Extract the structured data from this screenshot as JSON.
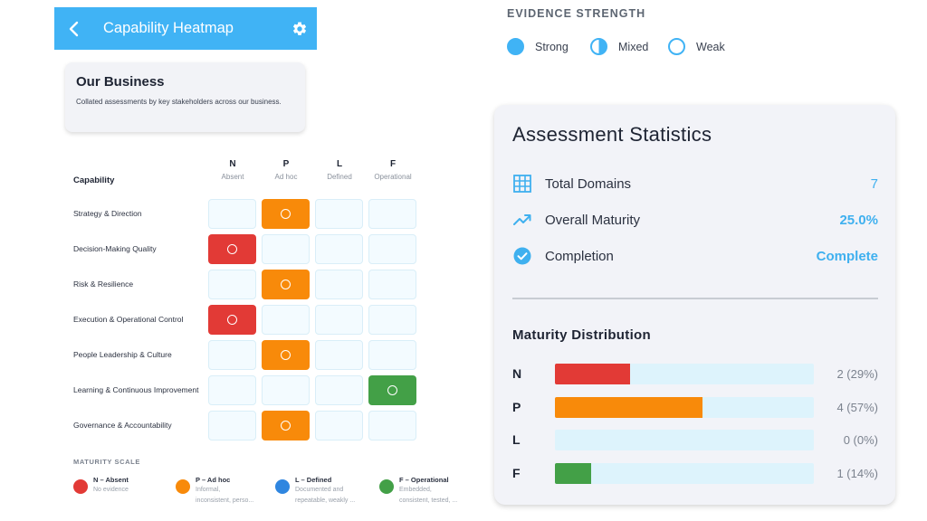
{
  "appbar": {
    "title": "Capability Heatmap",
    "back_icon": "back-arrow-icon",
    "settings_icon": "gear-icon"
  },
  "business": {
    "title": "Our Business",
    "description": "Collated assessments by key stakeholders across our business."
  },
  "heatmap": {
    "capability_header": "Capability",
    "columns": [
      {
        "code": "N",
        "label": "Absent"
      },
      {
        "code": "P",
        "label": "Ad hoc"
      },
      {
        "code": "L",
        "label": "Defined"
      },
      {
        "code": "F",
        "label": "Operational"
      }
    ],
    "rows": [
      {
        "label": "Strategy & Direction",
        "level": "P"
      },
      {
        "label": "Decision-Making Quality",
        "level": "N"
      },
      {
        "label": "Risk & Resilience",
        "level": "P"
      },
      {
        "label": "Execution & Operational Control",
        "level": "N"
      },
      {
        "label": "People Leadership & Culture",
        "level": "P"
      },
      {
        "label": "Learning & Continuous Improvement",
        "level": "F"
      },
      {
        "label": "Governance & Accountability",
        "level": "P"
      }
    ]
  },
  "maturity_scale": {
    "title": "MATURITY SCALE",
    "items": [
      {
        "title": "N – Absent",
        "desc1": "No evidence",
        "desc2": "",
        "color": "#e23a36"
      },
      {
        "title": "P – Ad hoc",
        "desc1": "Informal,",
        "desc2": "inconsistent, perso...",
        "color": "#f88a0a"
      },
      {
        "title": "L – Defined",
        "desc1": "Documented and",
        "desc2": "repeatable, weakly ...",
        "color": "#2f86e0"
      },
      {
        "title": "F – Operational",
        "desc1": "Embedded,",
        "desc2": "consistent, tested, ...",
        "color": "#43a047"
      }
    ]
  },
  "evidence": {
    "title": "EVIDENCE STRENGTH",
    "items": [
      {
        "label": "Strong",
        "icon": "strong-evidence-icon"
      },
      {
        "label": "Mixed",
        "icon": "mixed-evidence-icon"
      },
      {
        "label": "Weak",
        "icon": "weak-evidence-icon"
      }
    ]
  },
  "stats": {
    "title": "Assessment Statistics",
    "rows": [
      {
        "label": "Total Domains",
        "value": "7",
        "icon": "grid-icon"
      },
      {
        "label": "Overall Maturity",
        "value": "25.0%",
        "icon": "trending-up-icon"
      },
      {
        "label": "Completion",
        "value": "Complete",
        "icon": "check-circle-icon"
      }
    ],
    "distribution_title": "Maturity Distribution",
    "distribution": [
      {
        "label": "N",
        "count": 2,
        "fraction": 0.29,
        "text": "2 (29%)",
        "color": "#e23a36"
      },
      {
        "label": "P",
        "count": 4,
        "fraction": 0.57,
        "text": "4 (57%)",
        "color": "#f88a0a"
      },
      {
        "label": "L",
        "count": 0,
        "fraction": 0.0,
        "text": "0 (0%)",
        "color": "#2f86e0"
      },
      {
        "label": "F",
        "count": 1,
        "fraction": 0.14,
        "text": "1 (14%)",
        "color": "#43a047"
      }
    ]
  },
  "colors": {
    "accent": "#40b3f5",
    "value": "#3fb0ef"
  }
}
